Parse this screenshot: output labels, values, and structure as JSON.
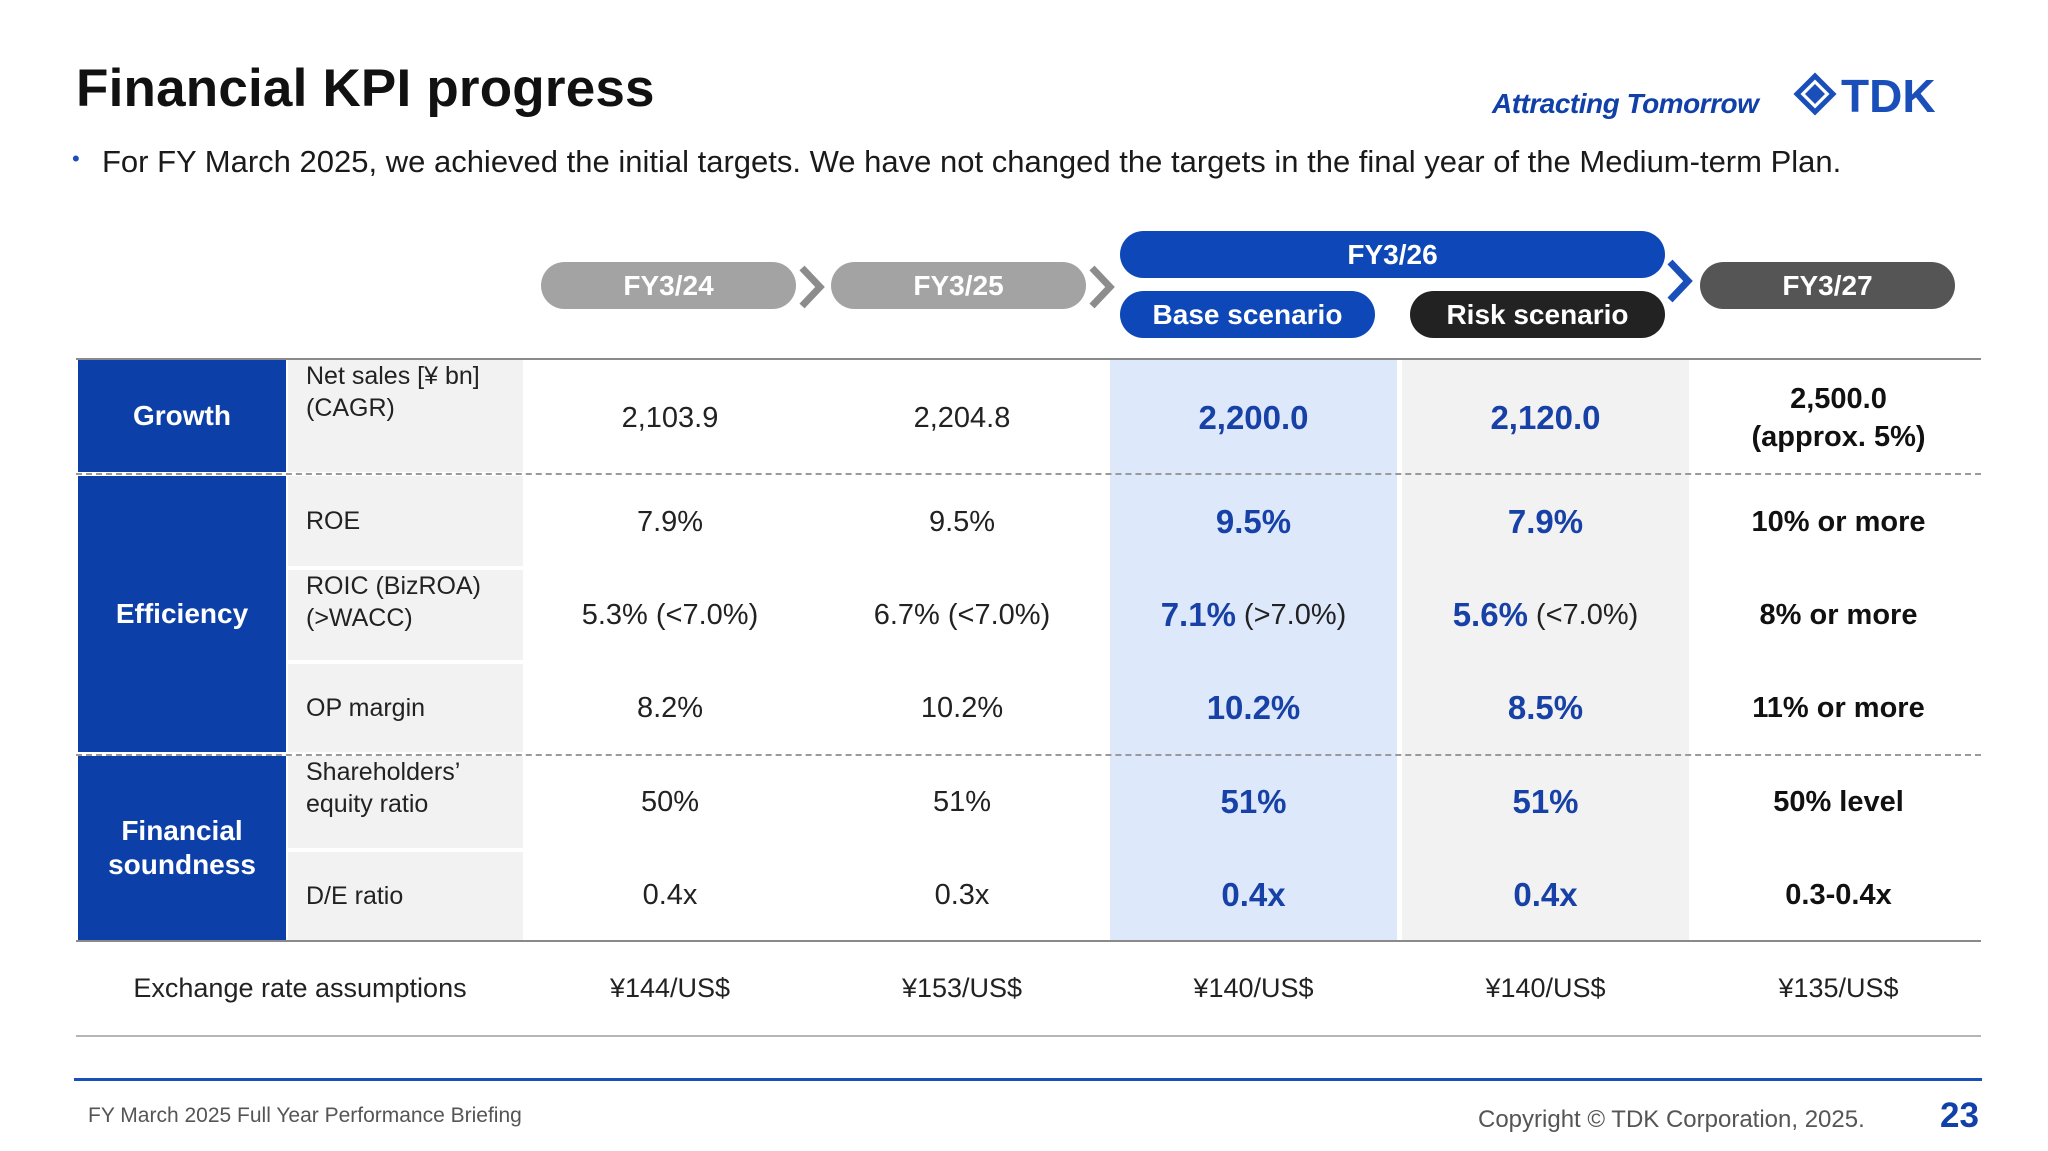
{
  "header": {
    "title": "Financial KPI progress",
    "tagline": "Attracting Tomorrow",
    "logo_text": "TDK",
    "bullet": "For FY March 2025, we achieved the initial targets. We have not changed the targets in the final year of the Medium-term Plan."
  },
  "columns": {
    "fy24": "FY3/24",
    "fy25": "FY3/25",
    "fy26": "FY3/26",
    "base": "Base scenario",
    "risk": "Risk scenario",
    "fy27": "FY3/27"
  },
  "categories": {
    "growth": "Growth",
    "efficiency": "Efficiency",
    "soundness_line1": "Financial",
    "soundness_line2": "soundness"
  },
  "rows": [
    {
      "label1": "Net sales [¥ bn]",
      "label2": "(CAGR)",
      "fy24": "2,103.9",
      "fy25": "2,204.8",
      "base": "2,200.0",
      "base_sub": "",
      "risk": "2,120.0",
      "risk_sub": "",
      "fy27a": "2,500.0",
      "fy27b": "(approx. 5%)"
    },
    {
      "label1": "ROE",
      "label2": "",
      "fy24": "7.9%",
      "fy25": "9.5%",
      "base": "9.5%",
      "base_sub": "",
      "risk": "7.9%",
      "risk_sub": "",
      "fy27a": "10% or more",
      "fy27b": ""
    },
    {
      "label1": "ROIC (BizROA)",
      "label2": "(>WACC)",
      "fy24": "5.3% (<7.0%)",
      "fy25": "6.7% (<7.0%)",
      "base": "7.1%",
      "base_sub": "(>7.0%)",
      "risk": "5.6%",
      "risk_sub": "(<7.0%)",
      "fy27a": "8% or more",
      "fy27b": ""
    },
    {
      "label1": "OP margin",
      "label2": "",
      "fy24": "8.2%",
      "fy25": "10.2%",
      "base": "10.2%",
      "base_sub": "",
      "risk": "8.5%",
      "risk_sub": "",
      "fy27a": "11% or more",
      "fy27b": ""
    },
    {
      "label1": "Shareholders’",
      "label2": "equity ratio",
      "fy24": "50%",
      "fy25": "51%",
      "base": "51%",
      "base_sub": "",
      "risk": "51%",
      "risk_sub": "",
      "fy27a": "50% level",
      "fy27b": ""
    },
    {
      "label1": "D/E ratio",
      "label2": "",
      "fy24": "0.4x",
      "fy25": "0.3x",
      "base": "0.4x",
      "base_sub": "",
      "risk": "0.4x",
      "risk_sub": "",
      "fy27a": "0.3-0.4x",
      "fy27b": ""
    }
  ],
  "exchange": {
    "label": "Exchange rate assumptions",
    "fy24": "¥144/US$",
    "fy25": "¥153/US$",
    "base": "¥140/US$",
    "risk": "¥140/US$",
    "fy27": "¥135/US$"
  },
  "footer": {
    "left": "FY March 2025 Full Year Performance Briefing",
    "right": "Copyright © TDK Corporation, 2025.",
    "page": "23"
  },
  "colors": {
    "brand_blue": "#0d3fa8",
    "base_fill": "#dde9fb",
    "risk_fill": "#f2f2f2"
  }
}
